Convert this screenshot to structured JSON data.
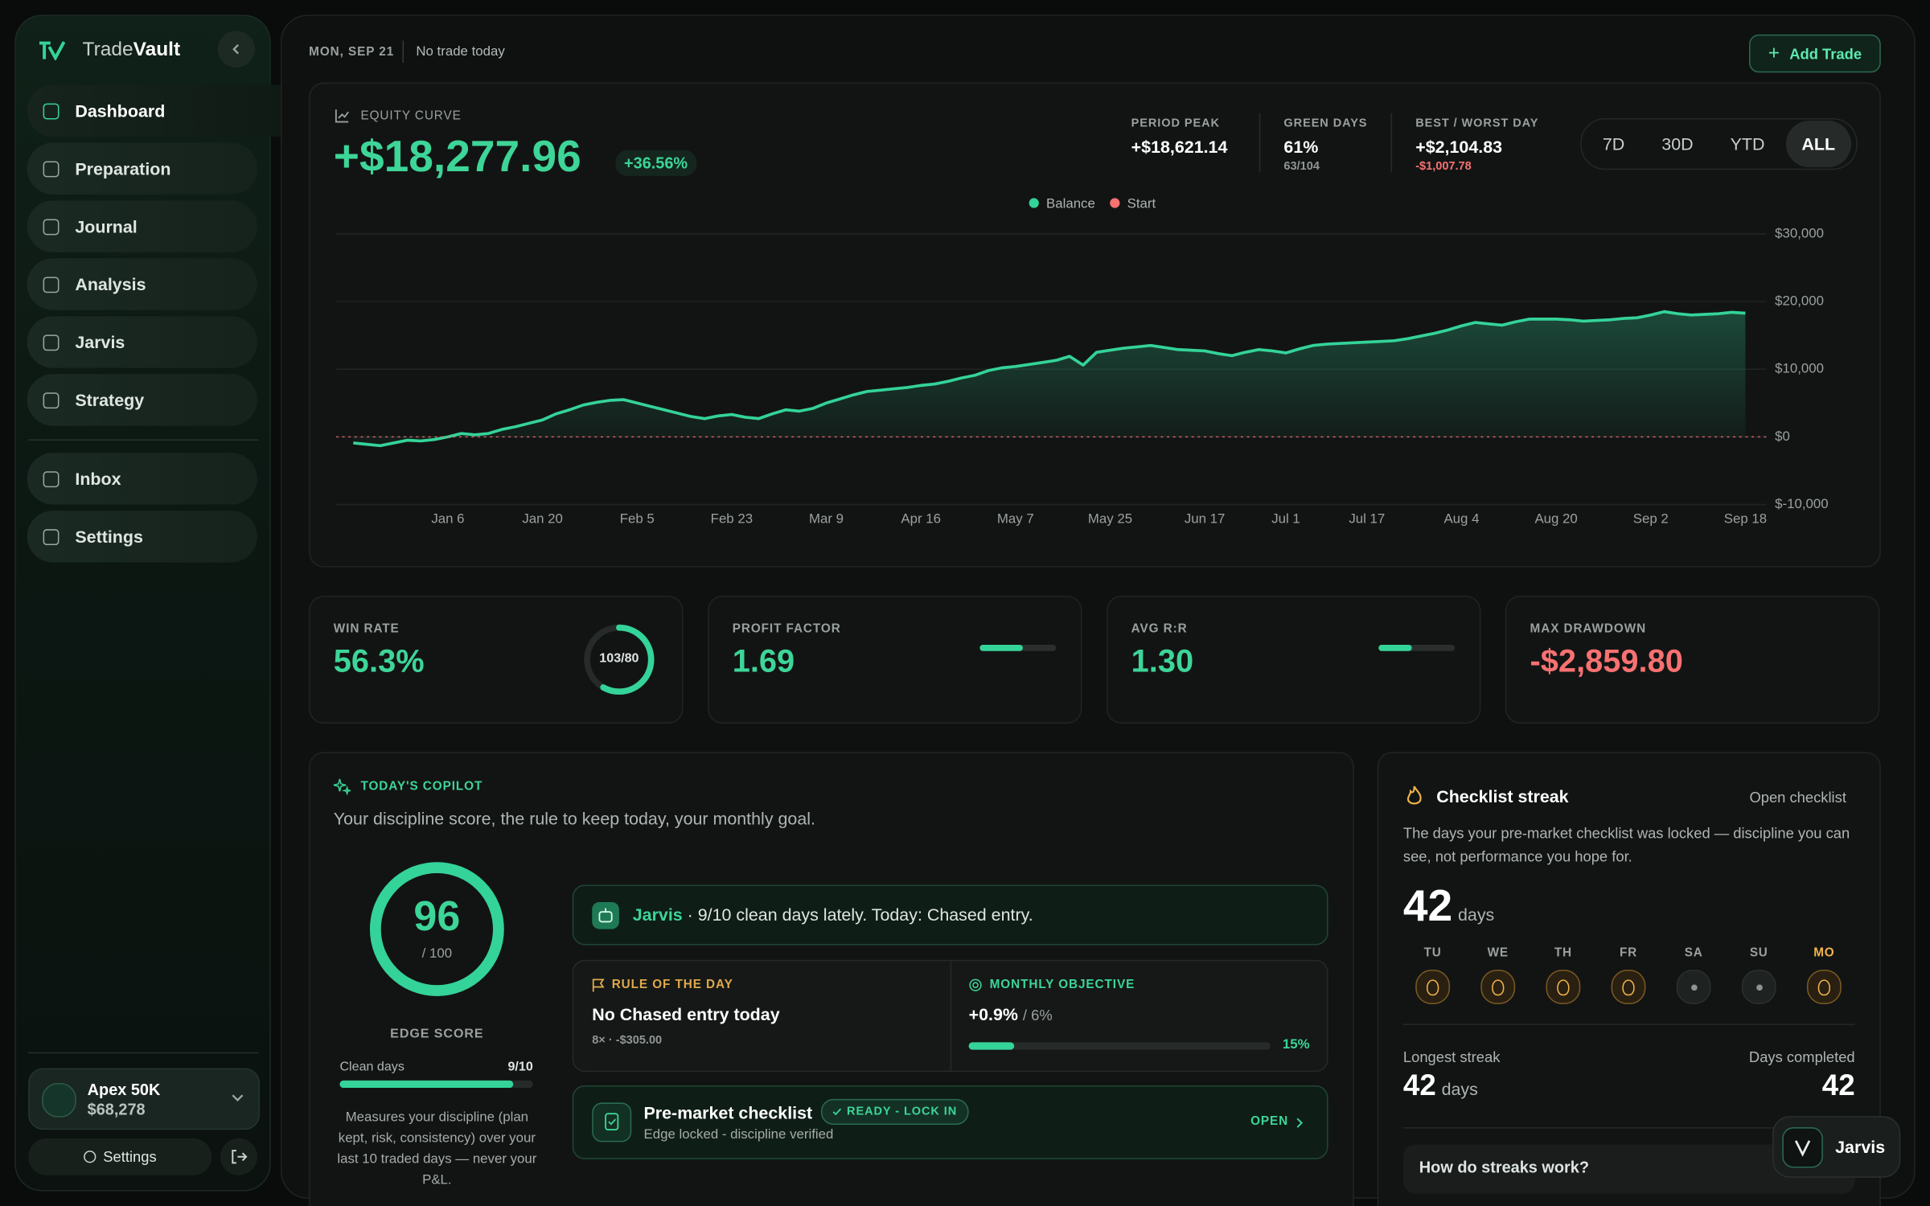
{
  "sidebar": {
    "brand": {
      "prefix": "Trade",
      "suffix": "Vault"
    },
    "nav": [
      "Dashboard",
      "Preparation",
      "Journal",
      "Analysis",
      "Jarvis",
      "Strategy"
    ],
    "active": "Dashboard",
    "nav_secondary": [
      "Inbox",
      "Settings"
    ],
    "account": {
      "name": "Apex 50K",
      "balance": "$68,278"
    },
    "settings_button": "Settings"
  },
  "header": {
    "date": "MON, SEP 21",
    "status": "No trade today",
    "add_button": "Add Trade"
  },
  "equity": {
    "label": "EQUITY CURVE",
    "total": "+$18,277.96",
    "change": "+36.56%",
    "stats": [
      {
        "label": "PERIOD PEAK",
        "value": "+$18,621.14"
      },
      {
        "label": "GREEN DAYS",
        "value": "61%",
        "sub": "63/104"
      },
      {
        "label": "BEST / WORST DAY",
        "value": "+$2,104.83",
        "sub": "-$1,007.78"
      }
    ],
    "ranges": [
      "7D",
      "30D",
      "YTD",
      "ALL"
    ],
    "active_range": "ALL"
  },
  "chart_data": {
    "type": "area",
    "categories": [
      null,
      null,
      null,
      null,
      null,
      null,
      null,
      "Jan 6",
      null,
      null,
      null,
      null,
      null,
      null,
      "Jan 20",
      null,
      null,
      null,
      null,
      null,
      null,
      "Feb 5",
      null,
      null,
      null,
      null,
      null,
      null,
      "Feb 23",
      null,
      null,
      null,
      null,
      null,
      null,
      "Mar 9",
      null,
      null,
      null,
      null,
      null,
      null,
      "Apr 16",
      null,
      null,
      null,
      null,
      null,
      null,
      "May 7",
      null,
      null,
      null,
      null,
      null,
      null,
      "May 25",
      null,
      null,
      null,
      null,
      null,
      null,
      "Jun 17",
      null,
      null,
      null,
      null,
      null,
      "Jul 1",
      null,
      null,
      null,
      null,
      null,
      "Jul 17",
      null,
      null,
      null,
      null,
      null,
      null,
      "Aug 4",
      null,
      null,
      null,
      null,
      null,
      null,
      "Aug 20",
      null,
      null,
      null,
      null,
      null,
      null,
      "Sep 2",
      null,
      null,
      null,
      null,
      null,
      null,
      "Sep 18"
    ],
    "series": [
      {
        "name": "Balance",
        "color": "#34d399",
        "values": [
          -900,
          -1100,
          -1300,
          -900,
          -500,
          -600,
          -400,
          0,
          500,
          300,
          500,
          1100,
          1500,
          2000,
          2500,
          3400,
          4000,
          4700,
          5100,
          5400,
          5500,
          5000,
          4500,
          4000,
          3500,
          3000,
          2700,
          3100,
          3300,
          2900,
          2700,
          3400,
          4000,
          3800,
          4200,
          5000,
          5600,
          6200,
          6700,
          6900,
          7100,
          7300,
          7600,
          7800,
          8200,
          8700,
          9100,
          9800,
          10200,
          10400,
          10700,
          11000,
          11300,
          11900,
          10600,
          12500,
          12800,
          13100,
          13300,
          13500,
          13200,
          12900,
          12800,
          12700,
          12300,
          12000,
          12500,
          12900,
          12700,
          12400,
          13000,
          13500,
          13700,
          13800,
          13900,
          14000,
          14100,
          14200,
          14500,
          14900,
          15300,
          15800,
          16400,
          16900,
          16700,
          16500,
          17000,
          17400,
          17400,
          17400,
          17300,
          17100,
          17200,
          17300,
          17500,
          17600,
          18000,
          18500,
          18200,
          18000,
          18100,
          18200,
          18400,
          18277.96
        ]
      }
    ],
    "reference_lines": [
      {
        "name": "Start",
        "color": "#f87171",
        "value": 0
      }
    ],
    "ylim": [
      -10000,
      30000
    ],
    "yticks": [
      {
        "value": 30000,
        "label": "$30,000"
      },
      {
        "value": 20000,
        "label": "$20,000"
      },
      {
        "value": 10000,
        "label": "$10,000"
      },
      {
        "value": 0,
        "label": "$0"
      },
      {
        "value": -10000,
        "label": "$-10,000"
      }
    ],
    "grid": true
  },
  "metrics": [
    {
      "label": "WIN RATE",
      "value": "56.3%",
      "ring": "103/80"
    },
    {
      "label": "PROFIT FACTOR",
      "value": "1.69"
    },
    {
      "label": "AVG R:R",
      "value": "1.30"
    },
    {
      "label": "MAX DRAWDOWN",
      "value": "-$2,859.80"
    }
  ],
  "copilot": {
    "title": "TODAY'S COPILOT",
    "subtitle": "Your discipline score, the rule to keep today, your monthly goal.",
    "score": "96",
    "score_max": "/ 100",
    "score_label": "EDGE SCORE",
    "clean_label": "Clean days",
    "clean_value": "9/10",
    "description": "Measures your discipline (plan kept, risk, consistency) over your last 10 traded days — never your P&L.",
    "jarvis": {
      "name": "Jarvis",
      "text": "· 9/10 clean days lately. Today: Chased entry."
    },
    "rule": {
      "label": "RULE OF THE DAY",
      "text": "No Chased entry today",
      "sub": "8× · -$305.00"
    },
    "objective": {
      "label": "MONTHLY OBJECTIVE",
      "value": "+0.9%",
      "target": "/ 6%",
      "progress": "15%"
    },
    "checklist": {
      "title": "Pre-market checklist",
      "badge": "READY - LOCK IN",
      "sub": "Edge locked - discipline verified",
      "action": "OPEN"
    }
  },
  "streak": {
    "title": "Checklist streak",
    "link": "Open checklist",
    "text": "The days your pre-market checklist was locked — discipline you can see, not performance you hope for.",
    "count": "42",
    "unit": "days",
    "days": [
      {
        "label": "TU",
        "done": true
      },
      {
        "label": "WE",
        "done": true
      },
      {
        "label": "TH",
        "done": true
      },
      {
        "label": "FR",
        "done": true
      },
      {
        "label": "SA",
        "done": false
      },
      {
        "label": "SU",
        "done": false
      },
      {
        "label": "MO",
        "done": true,
        "today": true
      }
    ],
    "longest_label": "Longest streak",
    "longest": "42",
    "longest_unit": "days",
    "completed_label": "Days completed",
    "completed": "42",
    "faq": "How do streaks work?"
  },
  "assistant_button": "Jarvis"
}
